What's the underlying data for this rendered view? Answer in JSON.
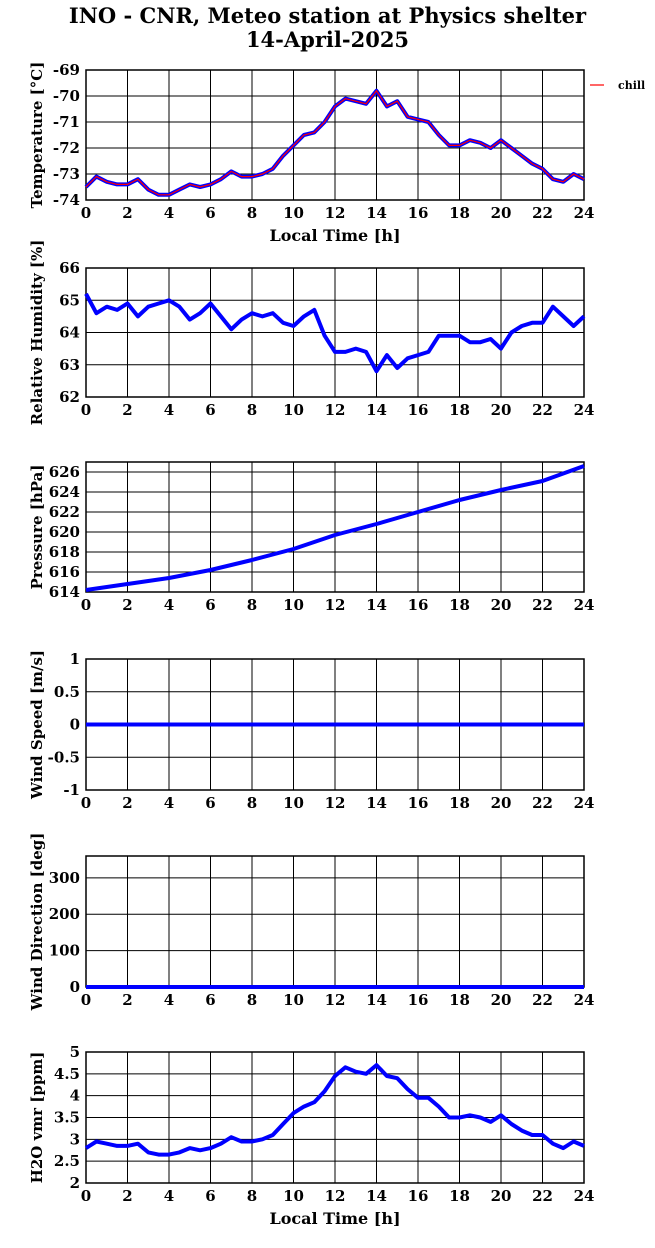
{
  "title": "INO - CNR, Meteo station at Physics shelter",
  "subtitle": "14-April-2025",
  "colors": {
    "series": "#0000ff",
    "temperature_overlay": "#ff0000",
    "axes": "#000000",
    "background": "#ffffff"
  },
  "chart_data": [
    {
      "type": "line",
      "ylabel": "Temperature [°C]",
      "xlabel": "Local Time [h]",
      "xlim": [
        0,
        24
      ],
      "ylim": [
        -74,
        -69
      ],
      "xticks": [
        0,
        2,
        4,
        6,
        8,
        10,
        12,
        14,
        16,
        18,
        20,
        22,
        24
      ],
      "yticks": [
        -74,
        -73,
        -72,
        -71,
        -70,
        -69
      ],
      "grid": true,
      "legend": {
        "entries": [
          "chill"
        ],
        "placement": "outside-right"
      },
      "series": [
        {
          "name": "chill",
          "color": "#ff0000",
          "x": [
            0,
            0.5,
            1,
            1.5,
            2,
            2.5,
            3,
            3.5,
            4,
            4.5,
            5,
            5.5,
            6,
            6.5,
            7,
            7.5,
            8,
            8.5,
            9,
            9.5,
            10,
            10.5,
            11,
            11.5,
            12,
            12.5,
            13,
            13.5,
            14,
            14.5,
            15,
            15.5,
            16,
            16.5,
            17,
            17.5,
            18,
            18.5,
            19,
            19.5,
            20,
            20.5,
            21,
            21.5,
            22,
            22.5,
            23,
            23.5,
            24
          ],
          "y": [
            -73.5,
            -73.1,
            -73.3,
            -73.4,
            -73.4,
            -73.2,
            -73.6,
            -73.8,
            -73.8,
            -73.6,
            -73.4,
            -73.5,
            -73.4,
            -73.2,
            -72.9,
            -73.1,
            -73.1,
            -73.0,
            -72.8,
            -72.3,
            -71.9,
            -71.5,
            -71.4,
            -71.0,
            -70.4,
            -70.1,
            -70.2,
            -70.3,
            -69.8,
            -70.4,
            -70.2,
            -70.8,
            -70.9,
            -71.0,
            -71.5,
            -71.9,
            -71.9,
            -71.7,
            -71.8,
            -72.0,
            -71.7,
            -72.0,
            -72.3,
            -72.6,
            -72.8,
            -73.2,
            -73.3,
            -73.0,
            -73.2
          ]
        }
      ]
    },
    {
      "type": "line",
      "ylabel": "Relative Humidity [%]",
      "xlim": [
        0,
        24
      ],
      "ylim": [
        62,
        66
      ],
      "xticks": [
        0,
        2,
        4,
        6,
        8,
        10,
        12,
        14,
        16,
        18,
        20,
        22,
        24
      ],
      "yticks": [
        62,
        63,
        64,
        65,
        66
      ],
      "grid": true,
      "series": [
        {
          "x": [
            0,
            0.5,
            1,
            1.5,
            2,
            2.5,
            3,
            3.5,
            4,
            4.5,
            5,
            5.5,
            6,
            6.5,
            7,
            7.5,
            8,
            8.5,
            9,
            9.5,
            10,
            10.5,
            11,
            11.5,
            12,
            12.5,
            13,
            13.5,
            14,
            14.5,
            15,
            15.5,
            16,
            16.5,
            17,
            17.5,
            18,
            18.5,
            19,
            19.5,
            20,
            20.5,
            21,
            21.5,
            22,
            22.5,
            23,
            23.5,
            24
          ],
          "y": [
            65.2,
            64.6,
            64.8,
            64.7,
            64.9,
            64.5,
            64.8,
            64.9,
            65.0,
            64.8,
            64.4,
            64.6,
            64.9,
            64.5,
            64.1,
            64.4,
            64.6,
            64.5,
            64.6,
            64.3,
            64.2,
            64.5,
            64.7,
            63.9,
            63.4,
            63.4,
            63.5,
            63.4,
            62.8,
            63.3,
            62.9,
            63.2,
            63.3,
            63.4,
            63.9,
            63.9,
            63.9,
            63.7,
            63.7,
            63.8,
            63.5,
            64.0,
            64.2,
            64.3,
            64.3,
            64.8,
            64.5,
            64.2,
            64.5
          ]
        }
      ]
    },
    {
      "type": "line",
      "ylabel": "Pressure [hPa]",
      "xlim": [
        0,
        24
      ],
      "ylim": [
        614,
        627
      ],
      "xticks": [
        0,
        2,
        4,
        6,
        8,
        10,
        12,
        14,
        16,
        18,
        20,
        22,
        24
      ],
      "yticks": [
        614,
        616,
        618,
        620,
        622,
        624,
        626
      ],
      "grid": true,
      "series": [
        {
          "x": [
            0,
            2,
            4,
            6,
            8,
            10,
            12,
            14,
            16,
            18,
            20,
            22,
            24
          ],
          "y": [
            614.2,
            614.8,
            615.4,
            616.2,
            617.2,
            618.3,
            619.7,
            620.8,
            622.0,
            623.2,
            624.2,
            625.1,
            626.6
          ]
        }
      ]
    },
    {
      "type": "line",
      "ylabel": "Wind Speed [m/s]",
      "xlim": [
        0,
        24
      ],
      "ylim": [
        -1,
        1
      ],
      "xticks": [
        0,
        2,
        4,
        6,
        8,
        10,
        12,
        14,
        16,
        18,
        20,
        22,
        24
      ],
      "yticks": [
        "-1",
        "-0.5",
        "0",
        "0.5",
        "1"
      ],
      "grid": true,
      "series": [
        {
          "x": [
            0,
            24
          ],
          "y": [
            0,
            0
          ]
        }
      ]
    },
    {
      "type": "line",
      "ylabel": "Wind Direction [deg]",
      "xlim": [
        0,
        24
      ],
      "ylim": [
        0,
        360
      ],
      "xticks": [
        0,
        2,
        4,
        6,
        8,
        10,
        12,
        14,
        16,
        18,
        20,
        22,
        24
      ],
      "yticks": [
        0,
        100,
        200,
        300
      ],
      "grid": true,
      "series": [
        {
          "x": [
            0,
            24
          ],
          "y": [
            0,
            0
          ]
        }
      ]
    },
    {
      "type": "line",
      "ylabel": "H2O vmr [ppm]",
      "xlabel": "Local Time [h]",
      "xlim": [
        0,
        24
      ],
      "ylim": [
        2,
        5
      ],
      "xticks": [
        0,
        2,
        4,
        6,
        8,
        10,
        12,
        14,
        16,
        18,
        20,
        22,
        24
      ],
      "yticks": [
        "2",
        "2.5",
        "3",
        "3.5",
        "4",
        "4.5",
        "5"
      ],
      "grid": true,
      "series": [
        {
          "x": [
            0,
            0.5,
            1,
            1.5,
            2,
            2.5,
            3,
            3.5,
            4,
            4.5,
            5,
            5.5,
            6,
            6.5,
            7,
            7.5,
            8,
            8.5,
            9,
            9.5,
            10,
            10.5,
            11,
            11.5,
            12,
            12.5,
            13,
            13.5,
            14,
            14.5,
            15,
            15.5,
            16,
            16.5,
            17,
            17.5,
            18,
            18.5,
            19,
            19.5,
            20,
            20.5,
            21,
            21.5,
            22,
            22.5,
            23,
            23.5,
            24
          ],
          "y": [
            2.8,
            2.95,
            2.9,
            2.85,
            2.85,
            2.9,
            2.7,
            2.65,
            2.65,
            2.7,
            2.8,
            2.75,
            2.8,
            2.9,
            3.05,
            2.95,
            2.95,
            3.0,
            3.1,
            3.35,
            3.6,
            3.75,
            3.85,
            4.1,
            4.45,
            4.65,
            4.55,
            4.5,
            4.7,
            4.45,
            4.4,
            4.15,
            3.95,
            3.95,
            3.75,
            3.5,
            3.5,
            3.55,
            3.5,
            3.4,
            3.55,
            3.35,
            3.2,
            3.1,
            3.1,
            2.9,
            2.8,
            2.95,
            2.85
          ]
        }
      ]
    }
  ]
}
